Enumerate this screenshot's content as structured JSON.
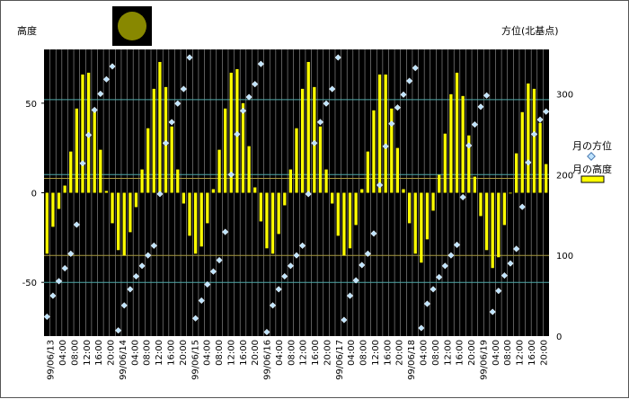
{
  "chart_data": {
    "type": "bar",
    "y_left_label": "高度",
    "y_right_label": "方位(北基点)",
    "y_left_ticks": [
      50,
      0,
      -50
    ],
    "y_left_range": [
      -80,
      80
    ],
    "y_right_ticks": [
      300,
      200,
      100,
      0
    ],
    "y_right_range": [
      0,
      355
    ],
    "x_tick_labels": [
      "99/06/13",
      "04:00",
      "08:00",
      "12:00",
      "16:00",
      "20:00",
      "99/06/14",
      "04:00",
      "08:00",
      "12:00",
      "16:00",
      "20:00",
      "99/06/15",
      "04:00",
      "08:00",
      "12:00",
      "16:00",
      "20:00",
      "99/06/16",
      "04:00",
      "08:00",
      "12:00",
      "16:00",
      "20:00",
      "99/06/17",
      "04:00",
      "08:00",
      "12:00",
      "16:00",
      "20:00",
      "99/06/18",
      "04:00",
      "08:00",
      "12:00",
      "16:00",
      "20:00",
      "99/06/19",
      "04:00",
      "08:00",
      "12:00",
      "16:00",
      "20:00"
    ],
    "series": [
      {
        "name": "月の高度",
        "axis": "left",
        "color": "#ffff00",
        "values": [
          -34,
          -19,
          -9,
          4,
          23,
          47,
          66,
          67,
          47,
          24,
          1,
          -17,
          -32,
          -35,
          -22,
          -8,
          13,
          36,
          58,
          73,
          59,
          37,
          13,
          -6,
          -24,
          -34,
          -30,
          -17,
          2,
          24,
          47,
          67,
          69,
          50,
          26,
          3,
          -16,
          -31,
          -34,
          -23,
          -7,
          13,
          36,
          58,
          73,
          59,
          37,
          13,
          -6,
          -24,
          -35,
          -31,
          -18,
          2,
          23,
          46,
          66,
          66,
          47,
          25,
          2,
          -17,
          -34,
          -39,
          -26,
          -10,
          10,
          33,
          55,
          67,
          54,
          32,
          9,
          -13,
          -32,
          -42,
          -36,
          -18,
          0,
          22,
          45,
          61,
          58,
          39,
          16
        ]
      },
      {
        "name": "月の方位",
        "axis": "right",
        "color": "#bfe4ff",
        "values": [
          24,
          50,
          68,
          84,
          102,
          138,
          214,
          249,
          280,
          300,
          318,
          334,
          7,
          38,
          58,
          74,
          87,
          100,
          112,
          176,
          239,
          265,
          288,
          306,
          345,
          22,
          44,
          64,
          80,
          94,
          129,
          200,
          250,
          279,
          296,
          312,
          337,
          5,
          38,
          58,
          74,
          87,
          100,
          112,
          176,
          239,
          265,
          288,
          306,
          345,
          20,
          50,
          69,
          88,
          102,
          127,
          187,
          235,
          263,
          283,
          299,
          316,
          332,
          10,
          40,
          58,
          73,
          87,
          100,
          113,
          172,
          236,
          262,
          284,
          298,
          30,
          56,
          75,
          90,
          108,
          160,
          215,
          250,
          268,
          278
        ]
      }
    ],
    "legend": [
      {
        "label": "月の方位",
        "marker": "diamond",
        "color": "#bfe4ff"
      },
      {
        "label": "月の高度",
        "marker": "box",
        "color": "#ffff00"
      }
    ],
    "left_ref_lines": [
      {
        "value": 52,
        "color": "#4fa8a8"
      },
      {
        "value": 8,
        "color": "#a89a40"
      },
      {
        "value": -35,
        "color": "#a89a40"
      },
      {
        "value": -50,
        "color": "#4fa8a8"
      }
    ],
    "right_ref_lines": [
      {
        "value": 200,
        "color": "#4fa8a8"
      }
    ],
    "plot_background": "#000000",
    "grid": true
  },
  "moon_icon": {
    "name": "moon-icon",
    "color": "#888800",
    "background": "#000000"
  }
}
